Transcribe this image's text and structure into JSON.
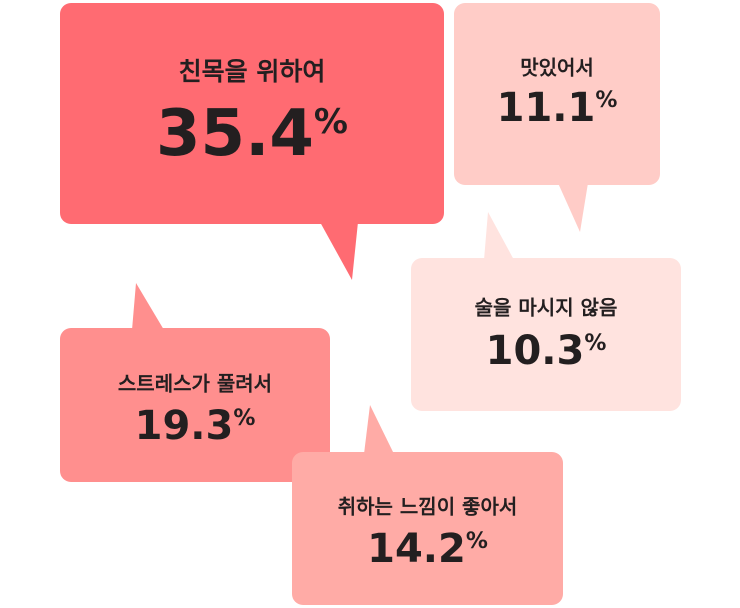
{
  "unit": "%",
  "items": [
    {
      "label": "친목을 위하여",
      "value": 35.4,
      "color": "#ff6b72"
    },
    {
      "label": "맛있어서",
      "value": 11.1,
      "color": "#ffccc7"
    },
    {
      "label": "술을 마시지 않음",
      "value": 10.3,
      "color": "#ffe3df"
    },
    {
      "label": "스트레스가 풀려서",
      "value": 19.3,
      "color": "#ff8f8e"
    },
    {
      "label": "취하는 느낌이 좋아서",
      "value": 14.2,
      "color": "#ffaba6"
    }
  ]
}
